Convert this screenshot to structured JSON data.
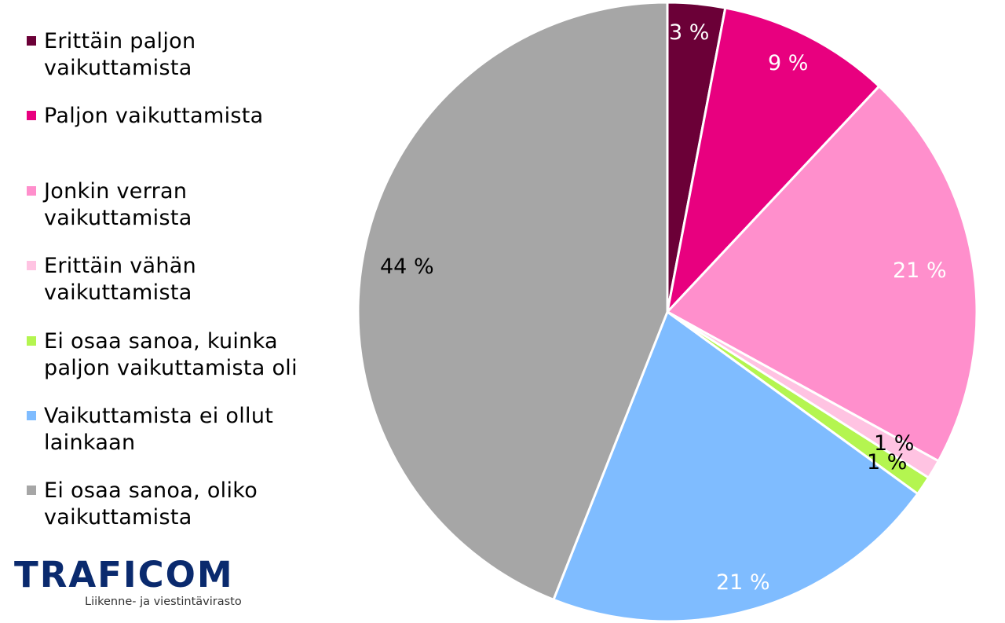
{
  "chart_data": {
    "type": "pie",
    "title": "",
    "start_angle_deg": 0,
    "direction": "clockwise",
    "categories": [
      "Erittäin paljon vaikuttamista",
      "Paljon vaikuttamista",
      "Jonkin verran vaikuttamista",
      "Erittäin vähän vaikuttamista",
      "Ei osaa sanoa, kuinka paljon vaikuttamista oli",
      "Vaikuttamista ei ollut lainkaan",
      "Ei osaa sanoa, oliko vaikuttamista"
    ],
    "values": [
      3,
      9,
      21,
      1,
      1,
      21,
      44
    ],
    "unit": "%",
    "data_labels": [
      "3 %",
      "9 %",
      "21 %",
      "1 %",
      "1 %",
      "21 %",
      "44 %"
    ],
    "colors": [
      "#6b0037",
      "#e8007f",
      "#ff8fcc",
      "#ffc3e2",
      "#b4f550",
      "#7fbcff",
      "#a6a6a6"
    ],
    "legend_position": "left"
  },
  "legend": {
    "items": [
      {
        "label": "Erittäin paljon\nvaikuttamista",
        "color": "#6b0037"
      },
      {
        "label": "Paljon vaikuttamista",
        "color": "#e8007f"
      },
      {
        "label": "Jonkin verran\nvaikuttamista",
        "color": "#ff8fcc"
      },
      {
        "label": "Erittäin vähän\nvaikuttamista",
        "color": "#ffc3e2"
      },
      {
        "label": "Ei osaa sanoa, kuinka\npaljon vaikuttamista oli",
        "color": "#b4f550"
      },
      {
        "label": "Vaikuttamista ei ollut\nlainkaan",
        "color": "#7fbcff"
      },
      {
        "label": "Ei osaa sanoa, oliko\nvaikuttamista",
        "color": "#a6a6a6"
      }
    ]
  },
  "slice_labels": [
    {
      "text": "3 %",
      "color": "#ffffff"
    },
    {
      "text": "9 %",
      "color": "#ffffff"
    },
    {
      "text": "21 %",
      "color": "#ffffff"
    },
    {
      "text": "1 %",
      "color": "#000000"
    },
    {
      "text": "1 %",
      "color": "#000000"
    },
    {
      "text": "21 %",
      "color": "#ffffff"
    },
    {
      "text": "44 %",
      "color": "#000000"
    }
  ],
  "logo": {
    "wordmark": "TRAFICOM",
    "subtitle": "Liikenne- ja viestintävirasto",
    "color": "#0a2a6e"
  }
}
